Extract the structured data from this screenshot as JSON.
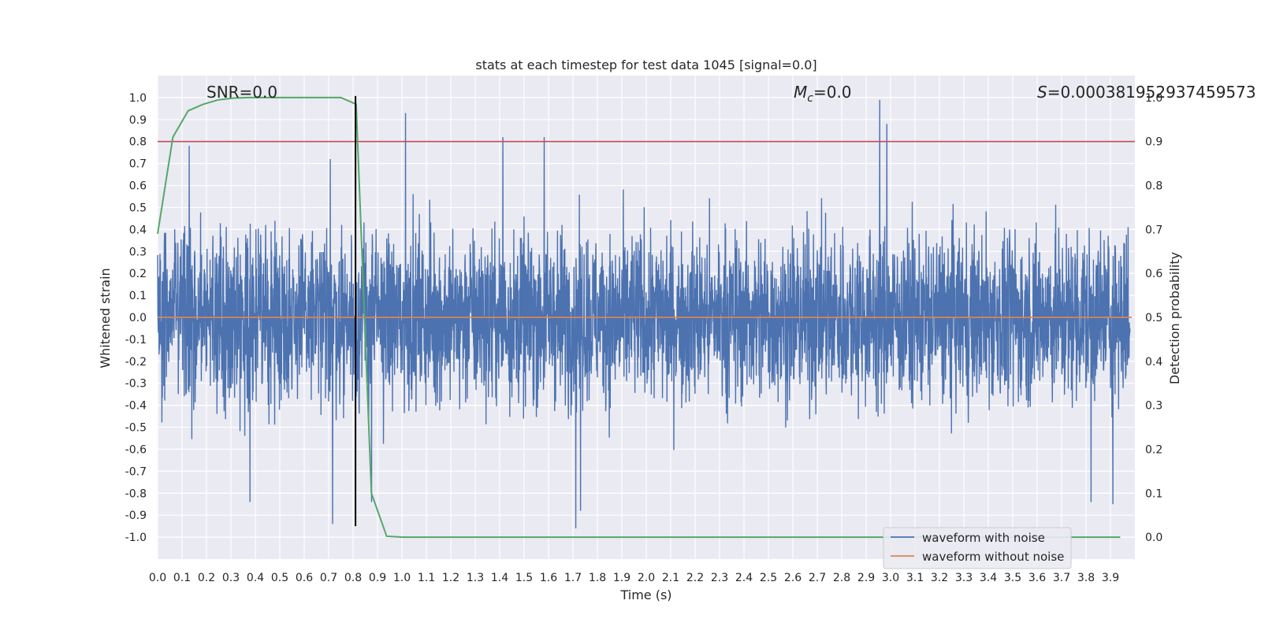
{
  "chart_data": {
    "type": "line",
    "title": "stats at each timestep for test data 1045 [signal=0.0]",
    "xlabel": "Time (s)",
    "ylabel": "Whitened strain",
    "y2label": "Detection probability",
    "xlim": [
      0.0,
      4.0
    ],
    "ylim": [
      -1.1,
      1.1
    ],
    "y2lim": [
      -0.05,
      1.05
    ],
    "x_ticks": [
      0.0,
      0.1,
      0.2,
      0.3,
      0.4,
      0.5,
      0.6,
      0.7,
      0.8,
      0.9,
      1.0,
      1.1,
      1.2,
      1.3,
      1.4,
      1.5,
      1.6,
      1.7,
      1.8,
      1.9,
      2.0,
      2.1,
      2.2,
      2.3,
      2.4,
      2.5,
      2.6,
      2.7,
      2.8,
      2.9,
      3.0,
      3.1,
      3.2,
      3.3,
      3.4,
      3.5,
      3.6,
      3.7,
      3.8,
      3.9
    ],
    "y_ticks": [
      1.0,
      0.9,
      0.8,
      0.7,
      0.6,
      0.5,
      0.4,
      0.3,
      0.2,
      0.1,
      0.0,
      -0.1,
      -0.2,
      -0.3,
      -0.4,
      -0.5,
      -0.6,
      -0.7,
      -0.8,
      -0.9,
      -1.0
    ],
    "y2_ticks": [
      0.0,
      0.1,
      0.2,
      0.3,
      0.4,
      0.5,
      0.6,
      0.7,
      0.8,
      0.9,
      1.0
    ],
    "grid": true,
    "annotations": {
      "snr": "SNR=0.0",
      "mc_symbol": "M",
      "mc_sub": "c",
      "mc_value": "=0.0",
      "s_symbol": "S",
      "s_value": "=0.000381952937459573"
    },
    "threshold": {
      "axis": "y2",
      "value": 0.9,
      "color": "#c44e52"
    },
    "event_marker": {
      "x": 0.81,
      "ymin": -0.95,
      "ymax": 1.0,
      "color": "#000000"
    },
    "series": [
      {
        "name": "waveform with noise",
        "axis": "y",
        "color": "#4c72b0",
        "description": "whitened strain noise, approx. 4096 samples over 4 s, envelope mostly within ±0.6",
        "peaks": [
          {
            "x": 0.13,
            "y": 0.78
          },
          {
            "x": 0.71,
            "y": 0.72
          },
          {
            "x": 1.02,
            "y": 0.93
          },
          {
            "x": 1.42,
            "y": 0.82
          },
          {
            "x": 1.59,
            "y": 0.82
          },
          {
            "x": 2.97,
            "y": 0.99
          },
          {
            "x": 3.0,
            "y": 0.88
          },
          {
            "x": 0.72,
            "y": -0.94
          },
          {
            "x": 1.72,
            "y": -0.96
          },
          {
            "x": 1.74,
            "y": -0.88
          },
          {
            "x": 3.84,
            "y": -0.84
          },
          {
            "x": 3.93,
            "y": -0.85
          },
          {
            "x": 0.38,
            "y": -0.84
          },
          {
            "x": 0.88,
            "y": -0.84
          }
        ]
      },
      {
        "name": "waveform without noise",
        "axis": "y",
        "color": "#dd8452",
        "x": [
          0.0,
          4.0
        ],
        "y": [
          0.0,
          0.0
        ]
      },
      {
        "name": "detection probability",
        "axis": "y2",
        "color": "#55a868",
        "x": [
          0.0,
          0.0625,
          0.125,
          0.1875,
          0.25,
          0.3125,
          0.375,
          0.4375,
          0.5,
          0.5625,
          0.625,
          0.6875,
          0.75,
          0.8125,
          0.875,
          0.9375,
          1.0,
          1.5,
          2.0,
          2.5,
          3.0,
          3.5,
          3.94
        ],
        "y": [
          0.69,
          0.91,
          0.97,
          0.985,
          0.995,
          0.999,
          1.0,
          1.0,
          1.0,
          1.0,
          1.0,
          1.0,
          1.0,
          0.985,
          0.1,
          0.002,
          0.0,
          0.0,
          0.0,
          0.0,
          0.0,
          0.0,
          0.0
        ]
      }
    ],
    "legend": {
      "position": "lower-right",
      "entries": [
        {
          "label": "waveform with noise",
          "color": "#4c72b0"
        },
        {
          "label": "waveform without noise",
          "color": "#dd8452"
        }
      ]
    }
  }
}
